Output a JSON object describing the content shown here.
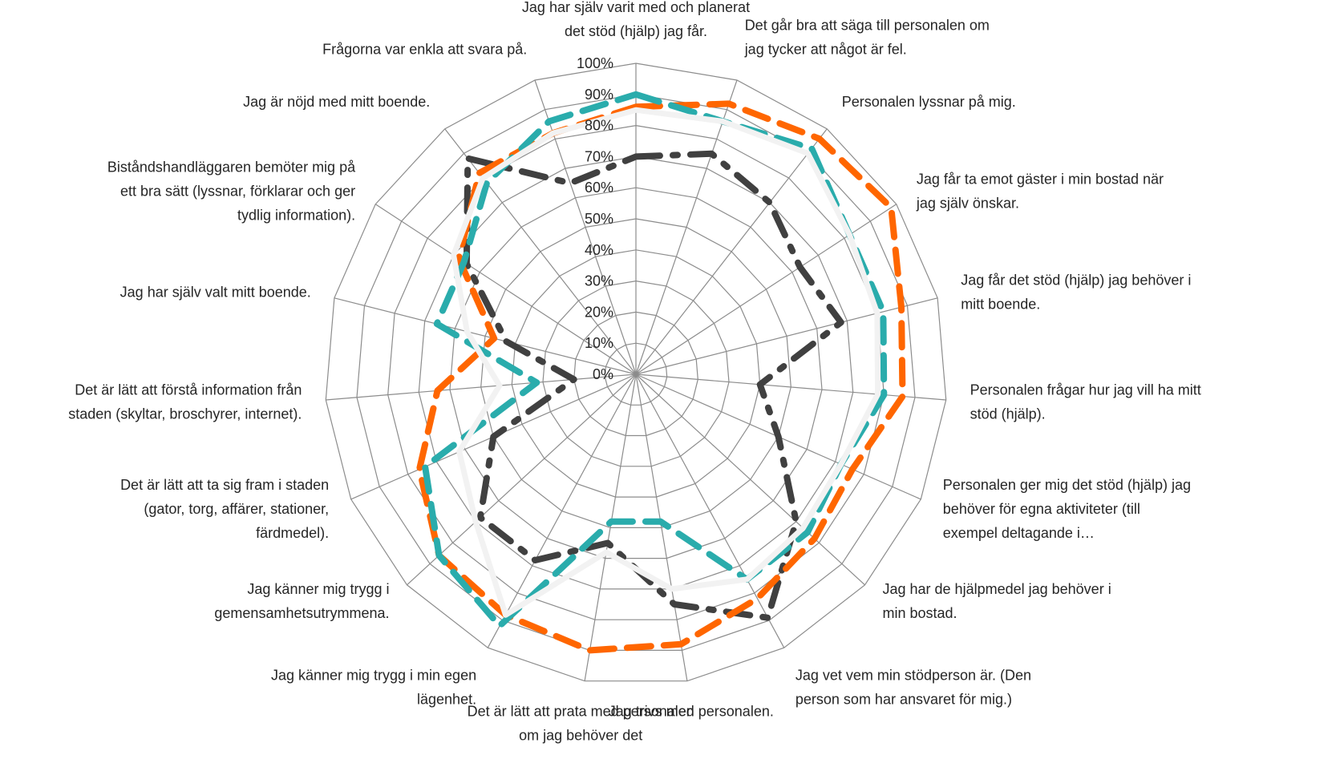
{
  "chart_data": {
    "type": "radar",
    "title": "",
    "rmin": 0,
    "rmax": 100,
    "ticks": [
      "0%",
      "10%",
      "20%",
      "30%",
      "40%",
      "50%",
      "60%",
      "70%",
      "80%",
      "90%",
      "100%"
    ],
    "grid": true,
    "legend": "none",
    "categories": [
      [
        "Jag har själv varit med och planerat",
        "det stöd (hjälp) jag får."
      ],
      [
        "Det går bra att säga till personalen om",
        "jag tycker att något är fel."
      ],
      [
        "Personalen lyssnar på mig."
      ],
      [
        "Jag får ta emot gäster i min bostad när",
        "jag själv önskar."
      ],
      [
        "Jag får det stöd (hjälp) jag behöver i",
        "mitt boende."
      ],
      [
        "Personalen frågar hur jag vill ha mitt",
        "stöd (hjälp)."
      ],
      [
        "Personalen ger mig det stöd (hjälp) jag",
        "behöver för egna aktiviteter (till",
        "exempel deltagande i…"
      ],
      [
        "Jag har de hjälpmedel jag behöver i",
        "min bostad."
      ],
      [
        "Jag vet vem min stödperson är. (Den",
        "person som har ansvaret för mig.)"
      ],
      [
        "Jag trivs med personalen."
      ],
      [
        "Det är lätt att prata med personalen",
        "om jag behöver det"
      ],
      [
        "Jag känner mig trygg i min egen",
        "lägenhet."
      ],
      [
        "Jag känner mig trygg i",
        "gemensamhetsutrymmena."
      ],
      [
        "Det är lätt att ta sig fram i staden",
        "(gator, torg, affärer, stationer,",
        "färdmedel)."
      ],
      [
        "Det är lätt att förstå information från",
        "staden (skyltar, broschyrer, internet)."
      ],
      [
        "Jag har själv valt mitt boende."
      ],
      [
        "Biståndshandläggaren bemöter mig på",
        "ett bra sätt (lyssnar, förklarar och ger",
        "tydlig information)."
      ],
      [
        "Jag är nöjd med mitt boende."
      ],
      [
        "Frågorna var enkla att svara på."
      ]
    ],
    "series": [
      {
        "color": "#404040",
        "dash": "longdashdot",
        "values": [
          70,
          75,
          70,
          63,
          68,
          40,
          50,
          70,
          89,
          75,
          55,
          68,
          68,
          50,
          20,
          43,
          65,
          88,
          65
        ]
      },
      {
        "color": "#ff6600",
        "dash": "longdash",
        "values": [
          86,
          92,
          96,
          98,
          88,
          86,
          76,
          78,
          82,
          88,
          90,
          88,
          86,
          76,
          64,
          47,
          68,
          82,
          82
        ]
      },
      {
        "color": "#2aacac",
        "dash": "longdash",
        "values": [
          90,
          86,
          92,
          82,
          82,
          80,
          72,
          75,
          75,
          48,
          48,
          92,
          86,
          74,
          32,
          66,
          66,
          78,
          86
        ]
      },
      {
        "color": "#f2f2f2",
        "dash": "solid",
        "values": [
          85,
          86,
          90,
          82,
          80,
          78,
          72,
          73,
          75,
          70,
          58,
          88,
          70,
          62,
          44,
          56,
          70,
          80,
          82
        ]
      }
    ]
  }
}
